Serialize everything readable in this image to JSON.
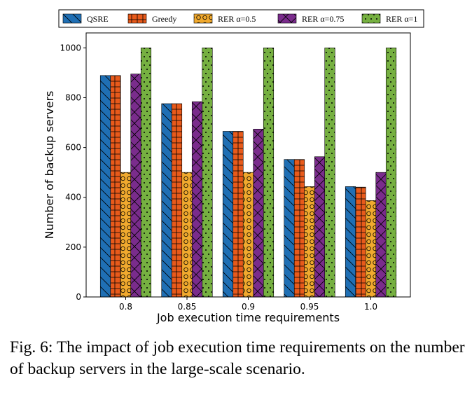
{
  "chart_data": {
    "type": "bar",
    "title": "",
    "xlabel": "Job execution time requirements",
    "ylabel": "Number of backup servers",
    "categories": [
      "0.8",
      "0.85",
      "0.9",
      "0.95",
      "1.0"
    ],
    "yticks": [
      "0",
      "200",
      "400",
      "600",
      "800",
      "1000"
    ],
    "ylim": [
      0,
      1060
    ],
    "grid": false,
    "legend_position": "top",
    "series": [
      {
        "name": "QSRE",
        "values": [
          889,
          776,
          665,
          552,
          443
        ],
        "color": "#1f6fb4",
        "pattern": "backslash"
      },
      {
        "name": "Greedy",
        "values": [
          889,
          776,
          665,
          552,
          441
        ],
        "color": "#e85a1b",
        "pattern": "grid"
      },
      {
        "name": "RER α=0.5",
        "values": [
          500,
          500,
          500,
          443,
          387
        ],
        "color": "#f0a92e",
        "pattern": "circles"
      },
      {
        "name": "RER α=0.75",
        "values": [
          895,
          784,
          674,
          563,
          500
        ],
        "color": "#7a2c8c",
        "pattern": "crosshatch"
      },
      {
        "name": "RER α=1",
        "values": [
          1000,
          1000,
          1000,
          1000,
          1000
        ],
        "color": "#76b041",
        "pattern": "dots"
      }
    ]
  },
  "caption": "Fig. 6: The impact of job execution time requirements on the number of backup servers in the large-scale scenario."
}
